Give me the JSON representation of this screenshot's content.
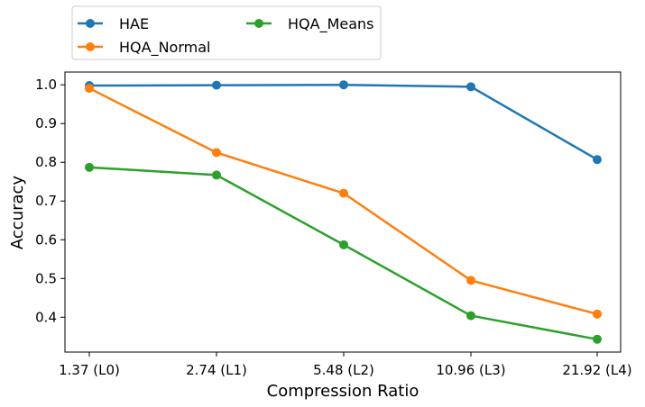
{
  "chart_data": {
    "type": "line",
    "title": "",
    "xlabel": "Compression Ratio",
    "ylabel": "Accuracy",
    "categories": [
      "1.37 (L0)",
      "2.74 (L1)",
      "5.48 (L2)",
      "10.96 (L3)",
      "21.92 (L4)"
    ],
    "ylim": [
      0.31,
      1.033
    ],
    "yticks": [
      0.4,
      0.5,
      0.6,
      0.7,
      0.8,
      0.9,
      1.0
    ],
    "ytick_labels": [
      "0.4",
      "0.5",
      "0.6",
      "0.7",
      "0.8",
      "0.9",
      "1.0"
    ],
    "grid": false,
    "legend_position": "above, top-left, 2 columns",
    "series": [
      {
        "name": "HAE",
        "color": "#1f77b4",
        "values": [
          0.998,
          0.999,
          1.0,
          0.995,
          0.807
        ]
      },
      {
        "name": "HQA_Normal",
        "color": "#ff7f0e",
        "values": [
          0.991,
          0.825,
          0.72,
          0.495,
          0.408
        ]
      },
      {
        "name": "HQA_Means",
        "color": "#2ca02c",
        "values": [
          0.787,
          0.767,
          0.587,
          0.404,
          0.343
        ]
      }
    ]
  }
}
